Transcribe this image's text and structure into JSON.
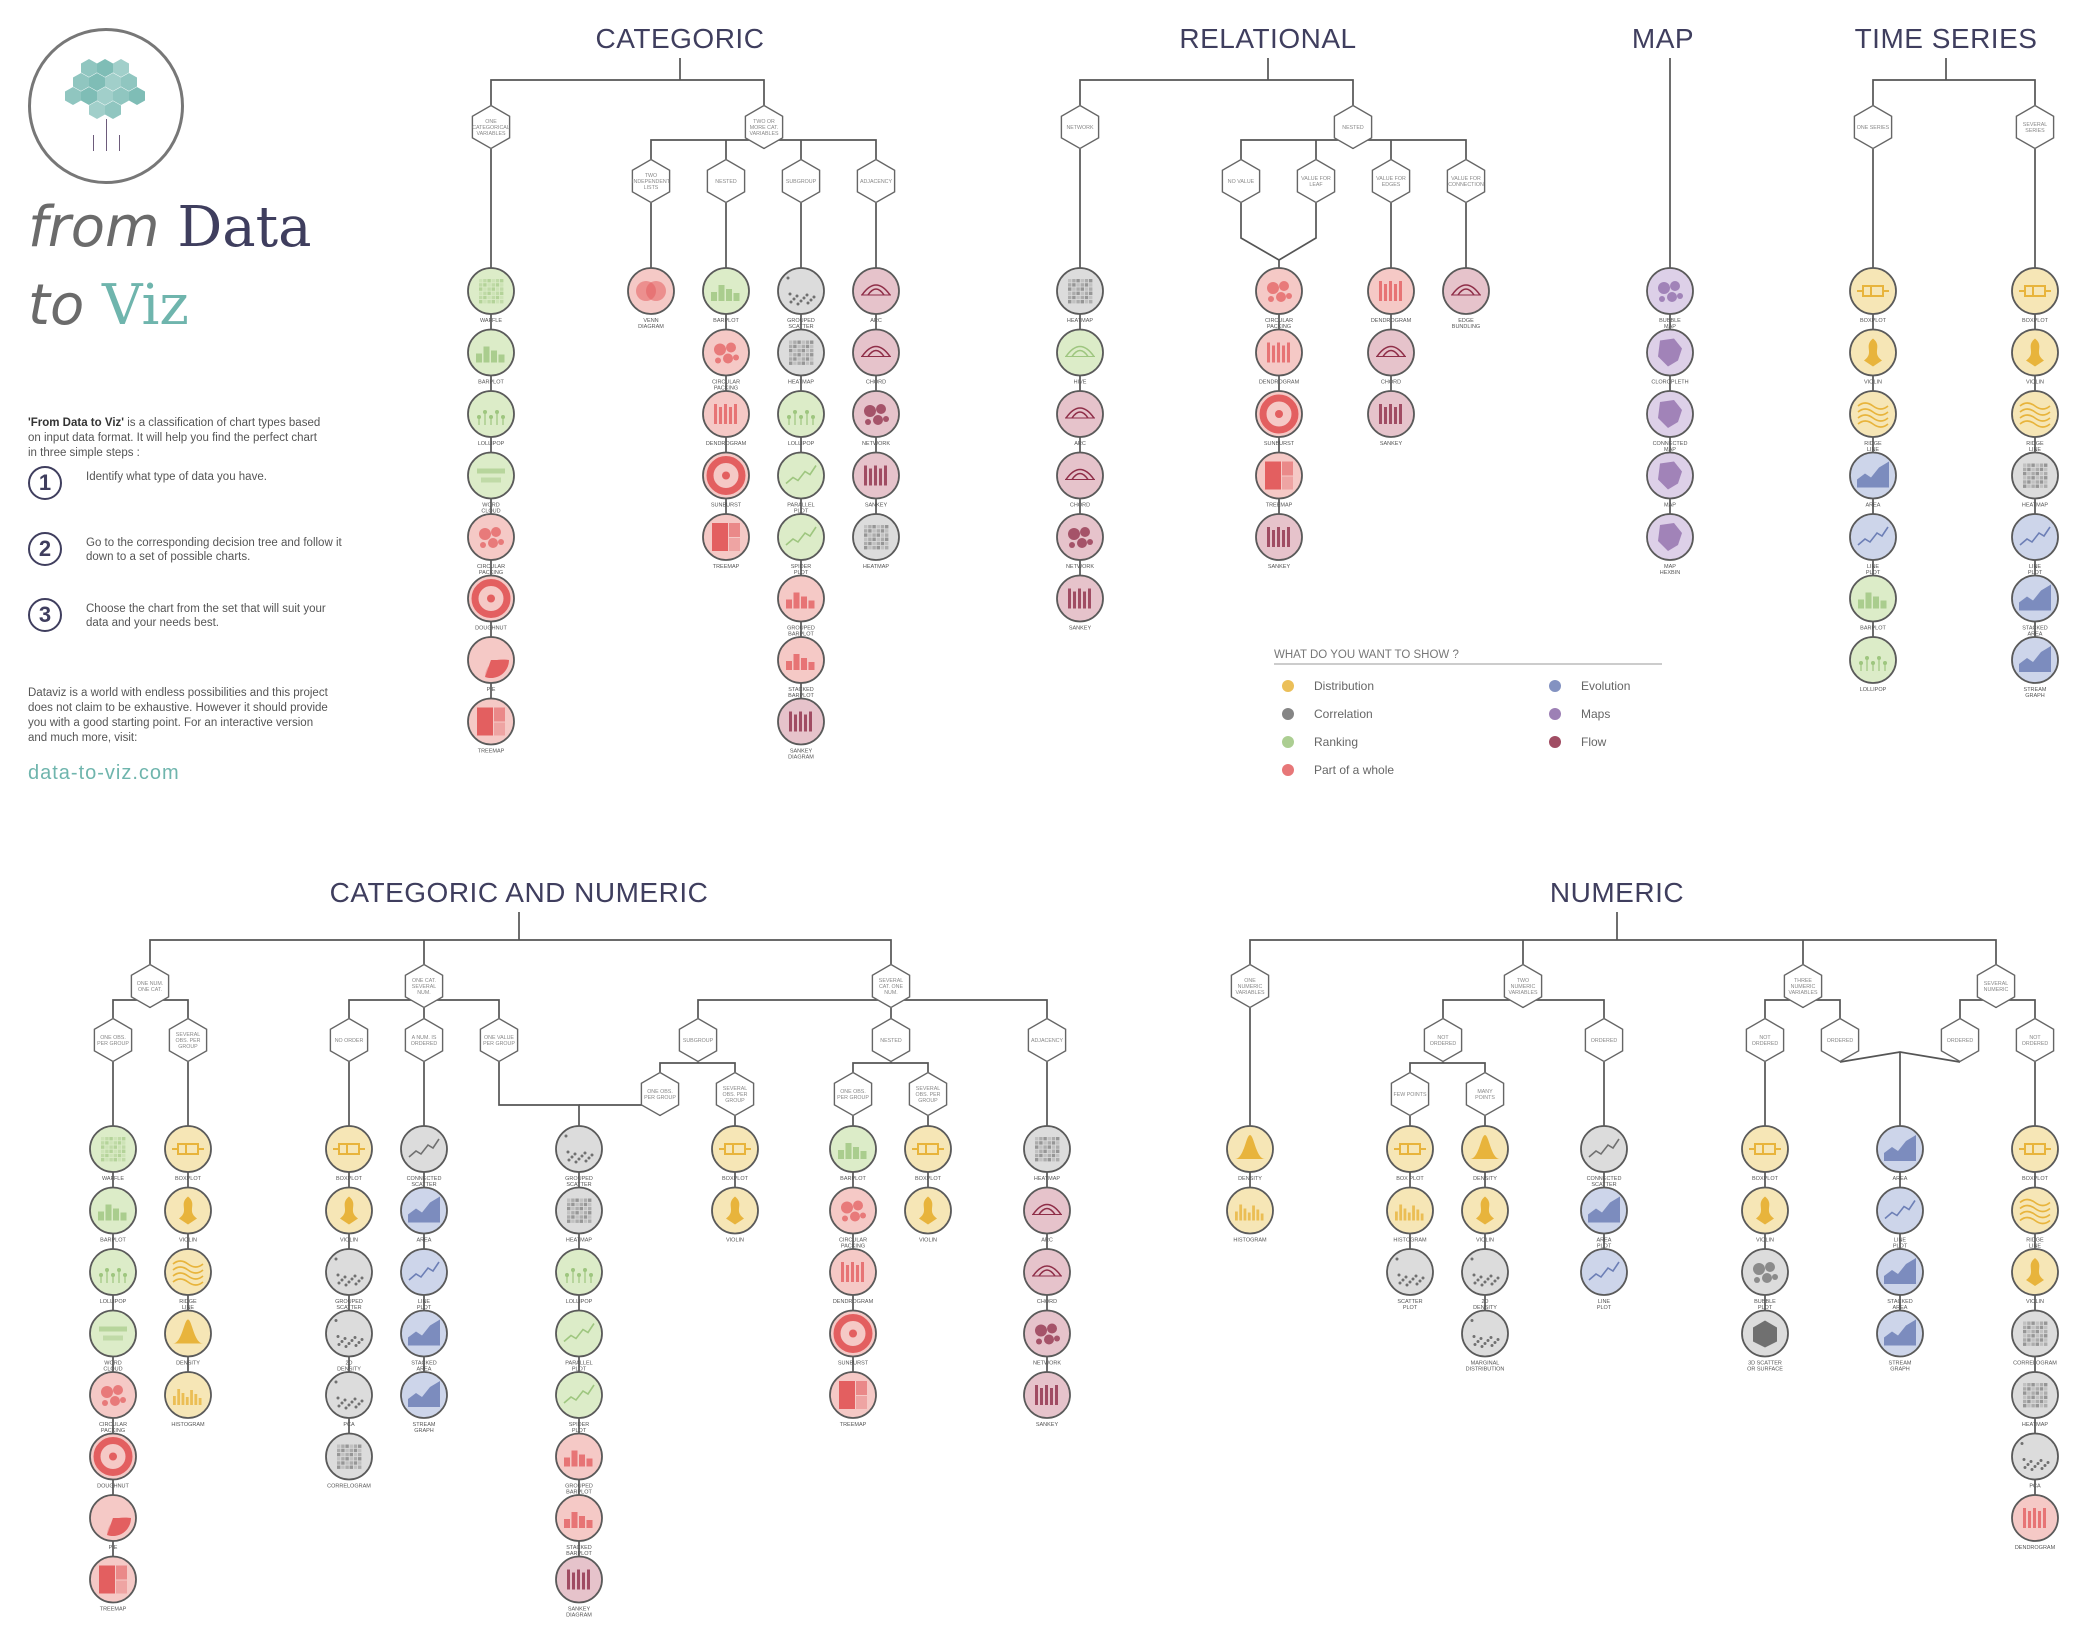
{
  "brand": {
    "line1_small": "from",
    "line1_big": "Data",
    "line2_small": "to",
    "line2_big": "Viz"
  },
  "intro": {
    "title_bold": "'From Data to Viz'",
    "text": " is a classification of chart types based on input data format. It will help you find the perfect chart in three simple steps :",
    "steps": [
      {
        "num": "1",
        "text": "Identify what type of data you have."
      },
      {
        "num": "2",
        "text": "Go to the corresponding decision tree and follow it down to a set of possible charts."
      },
      {
        "num": "3",
        "text": "Choose the chart from the set that will suit your data and your needs best."
      }
    ],
    "outro": "Dataviz is a world with endless possibilities and this project does not claim to be exhaustive. However it should provide you with a good starting point. For an interactive version and much more, visit:",
    "site": "data-to-viz.com"
  },
  "colors": {
    "Distribution": "#e8b43c",
    "Correlation": "#707070",
    "Ranking": "#9ec67f",
    "Part of a whole": "#e35f60",
    "Evolution": "#6d7fb6",
    "Maps": "#8c6aa8",
    "Flow": "#8f2e48",
    "line": "#555555",
    "title": "#3f3e5e"
  },
  "legend": {
    "title": "WHAT DO YOU WANT TO SHOW ?",
    "items": [
      {
        "label": "Distribution",
        "cat": "Distribution"
      },
      {
        "label": "Correlation",
        "cat": "Correlation"
      },
      {
        "label": "Ranking",
        "cat": "Ranking"
      },
      {
        "label": "Part of a whole",
        "cat": "Part of a whole"
      },
      {
        "label": "Evolution",
        "cat": "Evolution"
      },
      {
        "label": "Maps",
        "cat": "Maps"
      },
      {
        "label": "Flow",
        "cat": "Flow"
      }
    ]
  },
  "sections": [
    {
      "title": "CATEGORIC"
    },
    {
      "title": "RELATIONAL"
    },
    {
      "title": "MAP"
    },
    {
      "title": "TIME SERIES"
    },
    {
      "title": "CATEGORIC AND NUMERIC"
    },
    {
      "title": "NUMERIC"
    }
  ],
  "decisions": {
    "cat_one": "ONE CATEGORICAL VARIABLES",
    "cat_two": "TWO OR MORE CAT. VARIABLES",
    "cat_indep": "TWO INDEPENDENT LISTS",
    "cat_nested": "NESTED",
    "cat_subgroup": "SUBGROUP",
    "cat_adjacency": "ADJACENCY",
    "rel_network": "NETWORK",
    "rel_nested": "NESTED",
    "rel_novalue": "NO VALUE",
    "rel_leaf": "VALUE FOR LEAF",
    "rel_edges": "VALUE FOR EDGES",
    "rel_conn": "VALUE FOR CONNECTION",
    "ts_one": "ONE SERIES",
    "ts_several": "SEVERAL SERIES",
    "cn_onenum": "ONE NUM. ONE CAT.",
    "cn_onecat_sev": "ONE CAT. SEVERAL NUM.",
    "cn_severalcat": "SEVERAL CAT. ONE NUM.",
    "cn_oneobs": "ONE OBS. PER GROUP",
    "cn_sevobs": "SEVERAL OBS. PER GROUP",
    "cn_noorder": "NO ORDER",
    "cn_ordered": "A NUM. IS ORDERED",
    "cn_onevalue": "ONE VALUE PER GROUP",
    "cn_subgroup": "SUBGROUP",
    "cn_nested": "NESTED",
    "cn_adjacency": "ADJACENCY",
    "cn_sub_oneobs": "ONE OBS. PER GROUP",
    "cn_sub_sevobs": "SEVERAL OBS. PER GROUP",
    "cn_nest_oneobs": "ONE OBS. PER GROUP",
    "cn_nest_sevobs": "SEVERAL OBS. PER GROUP",
    "nu_one": "ONE NUMERIC VARIABLES",
    "nu_two": "TWO NUMERIC VARIABLES",
    "nu_three": "THREE NUMERIC VARIABLES",
    "nu_several": "SEVERAL NUMERIC",
    "nu_two_notordered": "NOT ORDERED",
    "nu_two_ordered": "ORDERED",
    "nu_few": "FEW POINTS",
    "nu_many": "MANY POINTS",
    "nu_three_notordered": "NOT ORDERED",
    "nu_three_ordered": "ORDERED",
    "nu_sev_ordered": "ORDERED",
    "nu_sev_notordered": "NOT ORDERED"
  },
  "columns": [
    {
      "id": "c1",
      "items": [
        [
          "WAFFLE",
          "Ranking"
        ],
        [
          "BARPLOT",
          "Ranking"
        ],
        [
          "LOLLIPOP",
          "Ranking"
        ],
        [
          "WORD CLOUD",
          "Ranking"
        ],
        [
          "CIRCULAR PACKING",
          "Part of a whole"
        ],
        [
          "DOUGHNUT",
          "Part of a whole"
        ],
        [
          "PIE",
          "Part of a whole"
        ],
        [
          "TREEMAP",
          "Part of a whole"
        ]
      ]
    },
    {
      "id": "c2",
      "items": [
        [
          "VENN DIAGRAM",
          "Part of a whole"
        ]
      ]
    },
    {
      "id": "c3",
      "items": [
        [
          "BARPLOT",
          "Ranking"
        ],
        [
          "CIRCULAR PACKING",
          "Part of a whole"
        ],
        [
          "DENDROGRAM",
          "Part of a whole"
        ],
        [
          "SUNBURST",
          "Part of a whole"
        ],
        [
          "TREEMAP",
          "Part of a whole"
        ]
      ]
    },
    {
      "id": "c4",
      "items": [
        [
          "GROUPED SCATTER",
          "Correlation"
        ],
        [
          "HEATMAP",
          "Correlation"
        ],
        [
          "LOLLIPOP",
          "Ranking"
        ],
        [
          "PARALLEL PLOT",
          "Ranking"
        ],
        [
          "SPIDER PLOT",
          "Ranking"
        ],
        [
          "GROUPED BARPLOT",
          "Part of a whole"
        ],
        [
          "STACKED BARPLOT",
          "Part of a whole"
        ],
        [
          "SANKEY DIAGRAM",
          "Flow"
        ]
      ]
    },
    {
      "id": "c5",
      "items": [
        [
          "ARC",
          "Flow"
        ],
        [
          "CHORD",
          "Flow"
        ],
        [
          "NETWORK",
          "Flow"
        ],
        [
          "SANKEY",
          "Flow"
        ],
        [
          "HEATMAP",
          "Correlation"
        ]
      ]
    },
    {
      "id": "r1",
      "items": [
        [
          "HEATMAP",
          "Correlation"
        ],
        [
          "HIVE",
          "Ranking"
        ],
        [
          "ARC",
          "Flow"
        ],
        [
          "CHORD",
          "Flow"
        ],
        [
          "NETWORK",
          "Flow"
        ],
        [
          "SANKEY",
          "Flow"
        ]
      ]
    },
    {
      "id": "r2",
      "items": [
        [
          "CIRCULAR PACKING",
          "Part of a whole"
        ],
        [
          "DENDROGRAM",
          "Part of a whole"
        ],
        [
          "SUNBURST",
          "Part of a whole"
        ],
        [
          "TREEMAP",
          "Part of a whole"
        ],
        [
          "SANKEY",
          "Flow"
        ]
      ]
    },
    {
      "id": "r3",
      "items": [
        [
          "DENDROGRAM",
          "Part of a whole"
        ],
        [
          "CHORD",
          "Flow"
        ],
        [
          "SANKEY",
          "Flow"
        ]
      ]
    },
    {
      "id": "r4",
      "items": [
        [
          "EDGE BUNDLING",
          "Flow"
        ]
      ]
    },
    {
      "id": "m1",
      "items": [
        [
          "BUBBLE MAP",
          "Maps"
        ],
        [
          "CLOROPLETH",
          "Maps"
        ],
        [
          "CONNECTED MAP",
          "Maps"
        ],
        [
          "MAP",
          "Maps"
        ],
        [
          "MAP HEXBIN",
          "Maps"
        ]
      ]
    },
    {
      "id": "t1",
      "items": [
        [
          "BOXPLOT",
          "Distribution"
        ],
        [
          "VIOLIN",
          "Distribution"
        ],
        [
          "RIDGE LINE",
          "Distribution"
        ],
        [
          "AREA",
          "Evolution"
        ],
        [
          "LINE PLOT",
          "Evolution"
        ],
        [
          "BARPLOT",
          "Ranking"
        ],
        [
          "LOLLIPOP",
          "Ranking"
        ]
      ]
    },
    {
      "id": "t2",
      "items": [
        [
          "BOXPLOT",
          "Distribution"
        ],
        [
          "VIOLIN",
          "Distribution"
        ],
        [
          "RIDGE LINE",
          "Distribution"
        ],
        [
          "HEATMAP",
          "Correlation"
        ],
        [
          "LINE PLOT",
          "Evolution"
        ],
        [
          "STACKED AREA",
          "Evolution"
        ],
        [
          "STREAM GRAPH",
          "Evolution"
        ]
      ]
    },
    {
      "id": "n1",
      "items": [
        [
          "WAFFLE",
          "Ranking"
        ],
        [
          "BARPLOT",
          "Ranking"
        ],
        [
          "LOLLIPOP",
          "Ranking"
        ],
        [
          "WORD CLOUD",
          "Ranking"
        ],
        [
          "CIRCULAR PACKING",
          "Part of a whole"
        ],
        [
          "DOUGHNUT",
          "Part of a whole"
        ],
        [
          "PIE",
          "Part of a whole"
        ],
        [
          "TREEMAP",
          "Part of a whole"
        ]
      ]
    },
    {
      "id": "n2",
      "items": [
        [
          "BOXPLOT",
          "Distribution"
        ],
        [
          "VIOLIN",
          "Distribution"
        ],
        [
          "RIDGE LINE",
          "Distribution"
        ],
        [
          "DENSITY",
          "Distribution"
        ],
        [
          "HISTOGRAM",
          "Distribution"
        ]
      ]
    },
    {
      "id": "n3",
      "items": [
        [
          "BOXPLOT",
          "Distribution"
        ],
        [
          "VIOLIN",
          "Distribution"
        ],
        [
          "GROUPED SCATTER",
          "Correlation"
        ],
        [
          "2D DENSITY",
          "Correlation"
        ],
        [
          "PCA",
          "Correlation"
        ],
        [
          "CORRELOGRAM",
          "Correlation"
        ]
      ]
    },
    {
      "id": "n4",
      "items": [
        [
          "CONNECTED SCATTER",
          "Correlation"
        ],
        [
          "AREA",
          "Evolution"
        ],
        [
          "LINE PLOT",
          "Evolution"
        ],
        [
          "STACKED AREA",
          "Evolution"
        ],
        [
          "STREAM GRAPH",
          "Evolution"
        ]
      ]
    },
    {
      "id": "n5",
      "items": [
        [
          "GROUPED SCATTER",
          "Correlation"
        ],
        [
          "HEATMAP",
          "Correlation"
        ],
        [
          "LOLLIPOP",
          "Ranking"
        ],
        [
          "PARALLEL PLOT",
          "Ranking"
        ],
        [
          "SPIDER PLOT",
          "Ranking"
        ],
        [
          "GROUPED BARPLOT",
          "Part of a whole"
        ],
        [
          "STACKED BARPLOT",
          "Part of a whole"
        ],
        [
          "SANKEY DIAGRAM",
          "Flow"
        ]
      ]
    },
    {
      "id": "n6",
      "items": [
        [
          "BOXPLOT",
          "Distribution"
        ],
        [
          "VIOLIN",
          "Distribution"
        ]
      ]
    },
    {
      "id": "n7",
      "items": [
        [
          "BARPLOT",
          "Ranking"
        ],
        [
          "CIRCULAR PACKING",
          "Part of a whole"
        ],
        [
          "DENDROGRAM",
          "Part of a whole"
        ],
        [
          "SUNBURST",
          "Part of a whole"
        ],
        [
          "TREEMAP",
          "Part of a whole"
        ]
      ]
    },
    {
      "id": "n8",
      "items": [
        [
          "BOXPLOT",
          "Distribution"
        ],
        [
          "VIOLIN",
          "Distribution"
        ]
      ]
    },
    {
      "id": "n9",
      "items": [
        [
          "HEATMAP",
          "Correlation"
        ],
        [
          "ARC",
          "Flow"
        ],
        [
          "CHORD",
          "Flow"
        ],
        [
          "NETWORK",
          "Flow"
        ],
        [
          "SANKEY",
          "Flow"
        ]
      ]
    },
    {
      "id": "u1",
      "items": [
        [
          "DENSITY",
          "Distribution"
        ],
        [
          "HISTOGRAM",
          "Distribution"
        ]
      ]
    },
    {
      "id": "u2",
      "items": [
        [
          "BOX PLOT",
          "Distribution"
        ],
        [
          "HISTOGRAM",
          "Distribution"
        ],
        [
          "SCATTER PLOT",
          "Correlation"
        ]
      ]
    },
    {
      "id": "u3",
      "items": [
        [
          "DENSITY",
          "Distribution"
        ],
        [
          "VIOLIN",
          "Distribution"
        ],
        [
          "2D DENSITY",
          "Correlation"
        ],
        [
          "MARGINAL DISTRIBUTION",
          "Correlation"
        ]
      ]
    },
    {
      "id": "u4",
      "items": [
        [
          "CONNECTED SCATTER",
          "Correlation"
        ],
        [
          "AREA PLOT",
          "Evolution"
        ],
        [
          "LINE PLOT",
          "Evolution"
        ]
      ]
    },
    {
      "id": "u5",
      "items": [
        [
          "BOXPLOT",
          "Distribution"
        ],
        [
          "VIOLIN",
          "Distribution"
        ],
        [
          "BUBBLE PLOT",
          "Correlation"
        ],
        [
          "3D SCATTER OR SURFACE",
          "Correlation"
        ]
      ]
    },
    {
      "id": "u6",
      "items": [
        [
          "AREA",
          "Evolution"
        ],
        [
          "LINE PLOT",
          "Evolution"
        ],
        [
          "STACKED AREA",
          "Evolution"
        ],
        [
          "STREAM GRAPH",
          "Evolution"
        ]
      ]
    },
    {
      "id": "u7",
      "items": [
        [
          "BOXPLOT",
          "Distribution"
        ],
        [
          "RIDGE LINE",
          "Distribution"
        ],
        [
          "VIOLIN",
          "Distribution"
        ],
        [
          "CORRELOGRAM",
          "Correlation"
        ],
        [
          "HEATMAP",
          "Correlation"
        ],
        [
          "PCA",
          "Correlation"
        ],
        [
          "DENDROGRAM",
          "Part of a whole"
        ]
      ]
    }
  ]
}
